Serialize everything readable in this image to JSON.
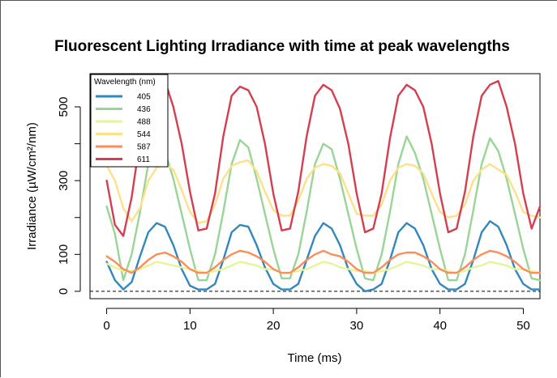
{
  "chart_data": {
    "type": "line",
    "title": "Fluorescent Lighting Irradiance with time at peak wavelengths",
    "xlabel": "Time (ms)",
    "ylabel": "Irradiance (µW/cm²/nm)",
    "xlim": [
      -2,
      52
    ],
    "ylim": [
      -20,
      590
    ],
    "x_ticks": [
      "0",
      "10",
      "20",
      "30",
      "40",
      "50"
    ],
    "y_ticks": [
      "0",
      "100",
      "300",
      "500"
    ],
    "x_tick_values": [
      0,
      10,
      20,
      30,
      40,
      50
    ],
    "y_tick_values": [
      0,
      100,
      300,
      500
    ],
    "reference_line": {
      "y": 0,
      "style": "dashed"
    },
    "legend": {
      "title": "Wavelength (nm)",
      "placement": "top-left"
    },
    "x": [
      0,
      1,
      2,
      3,
      4,
      5,
      6,
      7,
      8,
      9,
      10,
      11,
      12,
      13,
      14,
      15,
      16,
      17,
      18,
      19,
      20,
      21,
      22,
      23,
      24,
      25,
      26,
      27,
      28,
      29,
      30,
      31,
      32,
      33,
      34,
      35,
      36,
      37,
      38,
      39,
      40,
      41,
      42,
      43,
      44,
      45,
      46,
      47,
      48,
      49,
      50,
      51,
      52
    ],
    "series": [
      {
        "name": "405",
        "color": "#3288BD",
        "values": [
          80,
          30,
          5,
          25,
          95,
          160,
          185,
          175,
          125,
          60,
          15,
          5,
          5,
          20,
          85,
          160,
          180,
          175,
          125,
          65,
          20,
          5,
          5,
          20,
          85,
          150,
          185,
          170,
          125,
          60,
          20,
          0,
          5,
          20,
          85,
          160,
          185,
          170,
          125,
          60,
          20,
          5,
          5,
          20,
          85,
          160,
          190,
          175,
          125,
          60,
          20,
          5,
          5
        ]
      },
      {
        "name": "436",
        "color": "#99D594",
        "values": [
          230,
          155,
          30,
          100,
          215,
          345,
          405,
          380,
          305,
          210,
          115,
          30,
          30,
          100,
          215,
          345,
          410,
          390,
          305,
          210,
          115,
          35,
          35,
          100,
          215,
          345,
          400,
          385,
          305,
          210,
          115,
          35,
          30,
          100,
          215,
          345,
          420,
          375,
          305,
          210,
          115,
          30,
          30,
          100,
          220,
          345,
          415,
          380,
          305,
          210,
          115,
          35,
          30
        ]
      },
      {
        "name": "488",
        "color": "#E6F598",
        "values": [
          75,
          65,
          55,
          55,
          60,
          70,
          80,
          75,
          70,
          65,
          60,
          55,
          50,
          55,
          60,
          70,
          80,
          75,
          70,
          60,
          60,
          50,
          50,
          55,
          60,
          70,
          80,
          75,
          65,
          60,
          55,
          55,
          50,
          55,
          60,
          70,
          80,
          75,
          70,
          60,
          60,
          55,
          50,
          55,
          65,
          70,
          80,
          75,
          70,
          60,
          60,
          55,
          50
        ]
      },
      {
        "name": "544",
        "color": "#FEE08B",
        "values": [
          340,
          300,
          225,
          190,
          225,
          300,
          335,
          345,
          330,
          275,
          215,
          185,
          190,
          235,
          305,
          340,
          350,
          355,
          325,
          270,
          220,
          205,
          205,
          245,
          305,
          335,
          345,
          340,
          320,
          265,
          210,
          205,
          205,
          235,
          300,
          335,
          345,
          340,
          320,
          265,
          215,
          200,
          205,
          235,
          300,
          330,
          345,
          330,
          315,
          270,
          215,
          205,
          200
        ]
      },
      {
        "name": "587",
        "color": "#FC8D59",
        "values": [
          95,
          80,
          60,
          50,
          65,
          85,
          100,
          105,
          95,
          80,
          60,
          50,
          50,
          65,
          85,
          100,
          110,
          105,
          95,
          80,
          60,
          50,
          50,
          65,
          85,
          100,
          110,
          100,
          95,
          80,
          60,
          50,
          50,
          65,
          85,
          100,
          105,
          105,
          95,
          80,
          60,
          50,
          50,
          65,
          85,
          100,
          110,
          105,
          95,
          80,
          60,
          50,
          50
        ]
      },
      {
        "name": "611",
        "color": "#D53E4F",
        "values": [
          300,
          180,
          150,
          255,
          410,
          520,
          560,
          570,
          500,
          400,
          270,
          165,
          170,
          265,
          420,
          530,
          555,
          545,
          500,
          400,
          265,
          165,
          170,
          270,
          420,
          530,
          560,
          545,
          495,
          400,
          265,
          160,
          170,
          265,
          415,
          530,
          560,
          545,
          500,
          400,
          265,
          160,
          170,
          270,
          420,
          530,
          560,
          570,
          500,
          400,
          265,
          170,
          230
        ]
      }
    ]
  }
}
